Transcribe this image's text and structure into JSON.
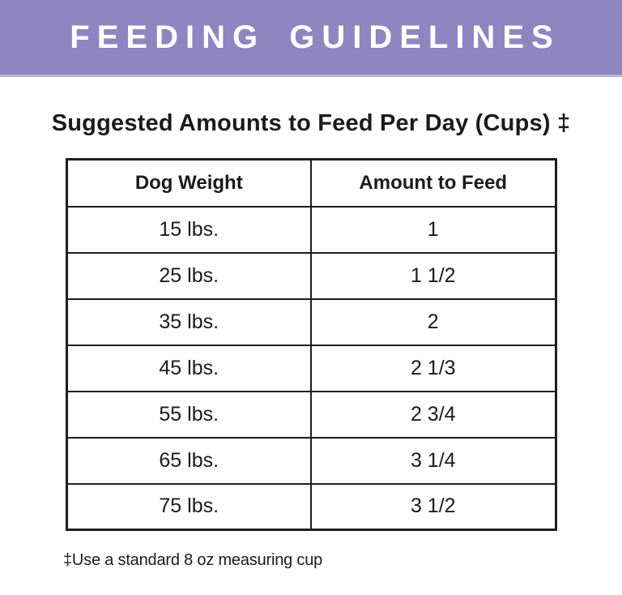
{
  "banner": {
    "title": "FEEDING GUIDELINES",
    "bg_color": "#8f85c1",
    "text_color": "#ffffff"
  },
  "section": {
    "title": "Suggested Amounts to Feed Per Day (Cups) ‡"
  },
  "table": {
    "columns": [
      "Dog Weight",
      "Amount to Feed"
    ],
    "rows": [
      {
        "weight": "15 lbs.",
        "amount": "1"
      },
      {
        "weight": "25 lbs.",
        "amount": "1 1/2"
      },
      {
        "weight": "35 lbs.",
        "amount": "2"
      },
      {
        "weight": "45 lbs.",
        "amount": "2 1/3"
      },
      {
        "weight": "55 lbs.",
        "amount": "2 3/4"
      },
      {
        "weight": "65 lbs.",
        "amount": "3 1/4"
      },
      {
        "weight": "75 lbs.",
        "amount": "3 1/2"
      }
    ]
  },
  "footnote": "‡Use a standard 8 oz measuring cup",
  "colors": {
    "banner_purple": "#8f85c1",
    "table_border": "#1e1e1e",
    "text": "#1b1b1b",
    "background": "#ffffff"
  }
}
